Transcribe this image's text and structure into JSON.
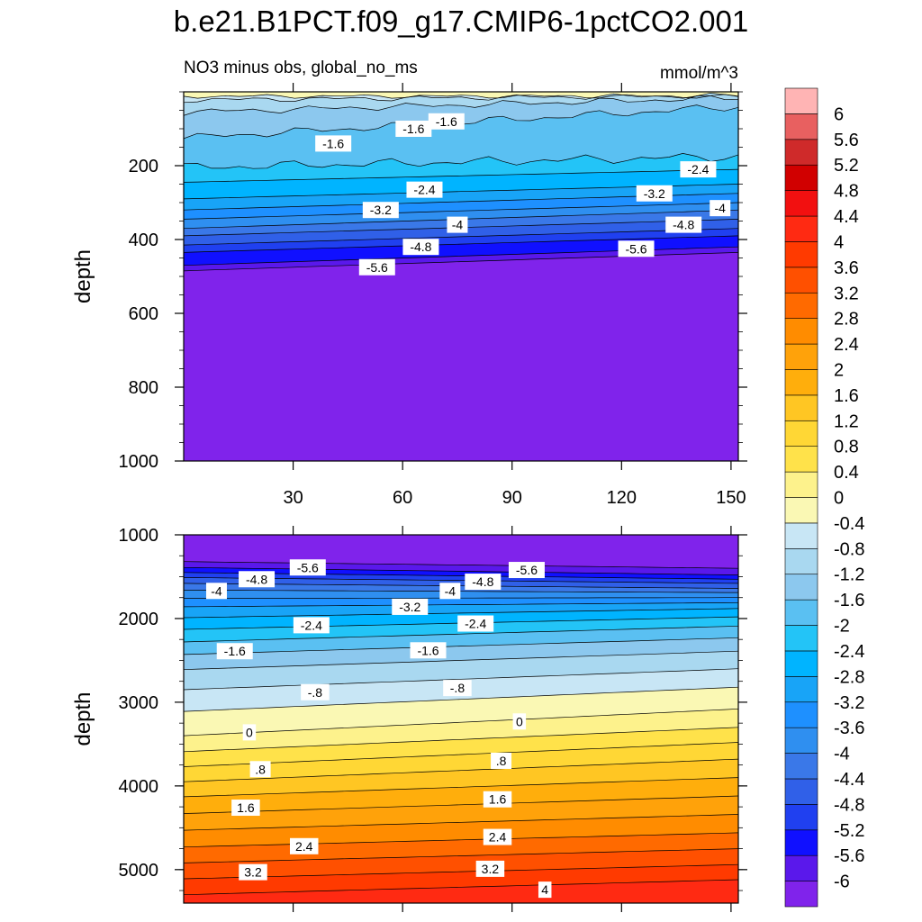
{
  "chart_data": {
    "type": "contour",
    "title": "b.e21.B1PCT.f09_g17.CMIP6-1pctCO2.001",
    "subtitle_left": "NO3 minus obs, global_no_ms",
    "units": "mmol/m^3",
    "xlabel": "",
    "ylabel": "depth",
    "x_range": [
      0,
      152
    ],
    "x_ticks": [
      30,
      60,
      90,
      120,
      150
    ],
    "x_tick_labels": [
      "30",
      "60",
      "90",
      "120",
      "150"
    ],
    "colorbar": {
      "levels": [
        -6,
        -5.6,
        -5.2,
        -4.8,
        -4.4,
        -4,
        -3.6,
        -3.2,
        -2.8,
        -2.4,
        -2,
        -1.6,
        -1.2,
        -0.8,
        -0.4,
        0,
        0.4,
        0.8,
        1.2,
        1.6,
        2,
        2.4,
        2.8,
        3.2,
        3.6,
        4,
        4.4,
        4.8,
        5.2,
        5.6,
        6
      ],
      "labels": [
        "-6",
        "-5.6",
        "-5.2",
        "-4.8",
        "-4.4",
        "-4",
        "-3.6",
        "-3.2",
        "-2.8",
        "-2.4",
        "-2",
        "-1.6",
        "-1.2",
        "-0.8",
        "-0.4",
        "0",
        "0.4",
        "0.8",
        "1.2",
        "1.6",
        "2",
        "2.4",
        "2.8",
        "3.2",
        "3.6",
        "4",
        "4.4",
        "4.8",
        "5.2",
        "5.6",
        "6"
      ],
      "colors": [
        "#8023eb",
        "#5a18eb",
        "#1010ff",
        "#2040f0",
        "#3060e8",
        "#3a78e8",
        "#2f8ff0",
        "#1e90ff",
        "#18a4f7",
        "#00b4ff",
        "#23c4f7",
        "#5ac0f2",
        "#8cc8ee",
        "#a9d8f0",
        "#c8e6f5",
        "#faf8b4",
        "#fdf28c",
        "#ffe24a",
        "#ffd735",
        "#ffc623",
        "#ffae0c",
        "#ffa20a",
        "#ff8c00",
        "#ff6a00",
        "#ff5000",
        "#ff3a00",
        "#ff2a12",
        "#f21010",
        "#d10000",
        "#cf2a2a",
        "#e86060",
        "#ffb4b4"
      ]
    },
    "panels": [
      {
        "name": "upper",
        "y_range": [
          0,
          1000
        ],
        "y_ticks": [
          200,
          400,
          600,
          800,
          1000
        ],
        "y_tick_labels": [
          "200",
          "400",
          "600",
          "800",
          "1000"
        ],
        "contour_levels": [
          {
            "value": -0.4,
            "depth_start": 12,
            "depth_end": 12
          },
          {
            "value": -0.8,
            "depth_start": 22,
            "depth_end": 10
          },
          {
            "value": -1.2,
            "depth_start": 55,
            "depth_end": 16
          },
          {
            "value": -1.6,
            "depth_start": 125,
            "depth_end": 40
          },
          {
            "value": -2.0,
            "depth_start": 205,
            "depth_end": 175
          },
          {
            "value": -2.4,
            "depth_start": 245,
            "depth_end": 210
          },
          {
            "value": -2.8,
            "depth_start": 290,
            "depth_end": 250
          },
          {
            "value": -3.2,
            "depth_start": 320,
            "depth_end": 275
          },
          {
            "value": -3.6,
            "depth_start": 345,
            "depth_end": 300
          },
          {
            "value": -4.0,
            "depth_start": 370,
            "depth_end": 320
          },
          {
            "value": -4.4,
            "depth_start": 390,
            "depth_end": 345
          },
          {
            "value": -4.8,
            "depth_start": 415,
            "depth_end": 370
          },
          {
            "value": -5.2,
            "depth_start": 435,
            "depth_end": 390
          },
          {
            "value": -5.6,
            "depth_start": 470,
            "depth_end": 420
          },
          {
            "value": -6.0,
            "depth_start": 485,
            "depth_end": 435
          }
        ],
        "labels": [
          {
            "text": "-1.6",
            "x": 41,
            "y": 140
          },
          {
            "text": "-1.6",
            "x": 63,
            "y": 100
          },
          {
            "text": "-1.6",
            "x": 72,
            "y": 80
          },
          {
            "text": "-2.4",
            "x": 66,
            "y": 265
          },
          {
            "text": "-2.4",
            "x": 141,
            "y": 210
          },
          {
            "text": "-3.2",
            "x": 54,
            "y": 320
          },
          {
            "text": "-3.2",
            "x": 129,
            "y": 275
          },
          {
            "text": "-4",
            "x": 75,
            "y": 360
          },
          {
            "text": "-4",
            "x": 147,
            "y": 315
          },
          {
            "text": "-4.8",
            "x": 65,
            "y": 420
          },
          {
            "text": "-4.8",
            "x": 137,
            "y": 360
          },
          {
            "text": "-5.6",
            "x": 53,
            "y": 475
          },
          {
            "text": "-5.6",
            "x": 124,
            "y": 425
          }
        ]
      },
      {
        "name": "lower",
        "y_range": [
          1000,
          5400
        ],
        "y_ticks": [
          1000,
          2000,
          3000,
          4000,
          5000
        ],
        "y_tick_labels": [
          "1000",
          "2000",
          "3000",
          "4000",
          "5000"
        ],
        "contour_levels": [
          {
            "value": -6.0,
            "depth_start": 1320,
            "depth_end": 1400
          },
          {
            "value": -5.6,
            "depth_start": 1390,
            "depth_end": 1480
          },
          {
            "value": -5.2,
            "depth_start": 1450,
            "depth_end": 1530
          },
          {
            "value": -4.8,
            "depth_start": 1510,
            "depth_end": 1580
          },
          {
            "value": -4.4,
            "depth_start": 1580,
            "depth_end": 1640
          },
          {
            "value": -4.0,
            "depth_start": 1660,
            "depth_end": 1690
          },
          {
            "value": -3.6,
            "depth_start": 1760,
            "depth_end": 1750
          },
          {
            "value": -3.2,
            "depth_start": 1860,
            "depth_end": 1810
          },
          {
            "value": -2.8,
            "depth_start": 1990,
            "depth_end": 1880
          },
          {
            "value": -2.4,
            "depth_start": 2130,
            "depth_end": 1980
          },
          {
            "value": -2.0,
            "depth_start": 2280,
            "depth_end": 2090
          },
          {
            "value": -1.6,
            "depth_start": 2430,
            "depth_end": 2230
          },
          {
            "value": -1.2,
            "depth_start": 2610,
            "depth_end": 2390
          },
          {
            "value": -0.8,
            "depth_start": 2850,
            "depth_end": 2600
          },
          {
            "value": -0.4,
            "depth_start": 3110,
            "depth_end": 2820
          },
          {
            "value": 0.0,
            "depth_start": 3400,
            "depth_end": 3080
          },
          {
            "value": 0.4,
            "depth_start": 3590,
            "depth_end": 3300
          },
          {
            "value": 0.8,
            "depth_start": 3770,
            "depth_end": 3480
          },
          {
            "value": 1.2,
            "depth_start": 3950,
            "depth_end": 3680
          },
          {
            "value": 1.6,
            "depth_start": 4130,
            "depth_end": 3900
          },
          {
            "value": 2.0,
            "depth_start": 4330,
            "depth_end": 4120
          },
          {
            "value": 2.4,
            "depth_start": 4530,
            "depth_end": 4340
          },
          {
            "value": 2.8,
            "depth_start": 4730,
            "depth_end": 4560
          },
          {
            "value": 3.2,
            "depth_start": 4920,
            "depth_end": 4750
          },
          {
            "value": 3.6,
            "depth_start": 5110,
            "depth_end": 4940
          },
          {
            "value": 4.0,
            "depth_start": 5300,
            "depth_end": 5120
          }
        ],
        "labels": [
          {
            "text": "-5.6",
            "x": 34,
            "y": 1390
          },
          {
            "text": "-5.6",
            "x": 94,
            "y": 1420
          },
          {
            "text": "-4.8",
            "x": 20,
            "y": 1530
          },
          {
            "text": "-4.8",
            "x": 82,
            "y": 1560
          },
          {
            "text": "-4",
            "x": 9,
            "y": 1670
          },
          {
            "text": "-4",
            "x": 73,
            "y": 1670
          },
          {
            "text": "-3.2",
            "x": 62,
            "y": 1860
          },
          {
            "text": "-2.4",
            "x": 35,
            "y": 2080
          },
          {
            "text": "-2.4",
            "x": 80,
            "y": 2060
          },
          {
            "text": "-1.6",
            "x": 14,
            "y": 2390
          },
          {
            "text": "-1.6",
            "x": 67,
            "y": 2380
          },
          {
            "text": "-.8",
            "x": 36,
            "y": 2880
          },
          {
            "text": "-.8",
            "x": 75,
            "y": 2830
          },
          {
            "text": "0",
            "x": 18,
            "y": 3360
          },
          {
            "text": "0",
            "x": 92,
            "y": 3230
          },
          {
            "text": ".8",
            "x": 21,
            "y": 3800
          },
          {
            "text": ".8",
            "x": 87,
            "y": 3700
          },
          {
            "text": "1.6",
            "x": 17,
            "y": 4260
          },
          {
            "text": "1.6",
            "x": 86,
            "y": 4160
          },
          {
            "text": "2.4",
            "x": 33,
            "y": 4720
          },
          {
            "text": "2.4",
            "x": 86,
            "y": 4610
          },
          {
            "text": "3.2",
            "x": 19,
            "y": 5030
          },
          {
            "text": "3.2",
            "x": 84,
            "y": 4990
          },
          {
            "text": "4",
            "x": 99,
            "y": 5240
          }
        ]
      }
    ]
  }
}
